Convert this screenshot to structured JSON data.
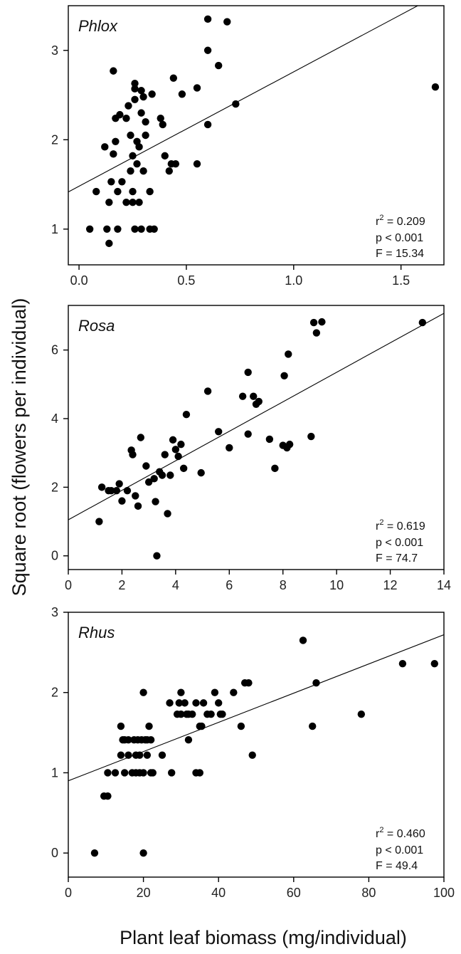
{
  "figure": {
    "ylabel": "Square root (flowers per individual)",
    "xlabel": "Plant leaf biomass (mg/individual)"
  },
  "chart_data": [
    {
      "type": "scatter",
      "title": "Phlox",
      "xlim": [
        -0.05,
        1.7
      ],
      "ylim": [
        0.6,
        3.5
      ],
      "xticks": [
        0.0,
        0.5,
        1.0,
        1.5
      ],
      "xtick_labels": [
        "0.0",
        "0.5",
        "1.0",
        "1.5"
      ],
      "yticks": [
        1,
        2,
        3
      ],
      "ytick_labels": [
        "1",
        "2",
        "3"
      ],
      "fit": {
        "intercept": 1.48,
        "slope": 1.28
      },
      "stats": {
        "r2": "0.209",
        "p": "p < 0.001",
        "F": "F = 15.34"
      },
      "x": [
        0.05,
        0.08,
        0.12,
        0.13,
        0.14,
        0.14,
        0.15,
        0.16,
        0.16,
        0.17,
        0.17,
        0.18,
        0.18,
        0.19,
        0.2,
        0.22,
        0.22,
        0.23,
        0.24,
        0.24,
        0.25,
        0.25,
        0.25,
        0.26,
        0.26,
        0.26,
        0.26,
        0.27,
        0.27,
        0.28,
        0.28,
        0.29,
        0.29,
        0.29,
        0.3,
        0.3,
        0.31,
        0.31,
        0.33,
        0.33,
        0.34,
        0.35,
        0.38,
        0.39,
        0.4,
        0.42,
        0.43,
        0.44,
        0.45,
        0.48,
        0.55,
        0.55,
        0.6,
        0.6,
        0.6,
        0.65,
        0.69,
        0.73,
        1.66
      ],
      "y": [
        1.0,
        1.42,
        1.92,
        1.0,
        0.84,
        1.3,
        1.53,
        1.84,
        2.77,
        2.24,
        1.98,
        1.42,
        1.0,
        2.28,
        1.53,
        2.24,
        1.3,
        2.38,
        1.65,
        2.05,
        1.82,
        1.42,
        1.3,
        2.63,
        2.57,
        2.45,
        1.0,
        1.98,
        1.73,
        1.3,
        1.92,
        2.55,
        2.3,
        1.0,
        2.48,
        1.65,
        2.05,
        2.2,
        1.42,
        1.0,
        2.51,
        1.0,
        2.24,
        2.17,
        1.82,
        1.65,
        1.73,
        2.69,
        1.73,
        2.51,
        2.58,
        1.73,
        3.35,
        3.0,
        2.17,
        2.83,
        3.32,
        2.4,
        2.59
      ]
    },
    {
      "type": "scatter",
      "title": "Rosa",
      "xlim": [
        0,
        14
      ],
      "ylim": [
        -0.4,
        7.3
      ],
      "xticks": [
        0,
        2,
        4,
        6,
        8,
        10,
        12,
        14
      ],
      "xtick_labels": [
        "0",
        "2",
        "4",
        "6",
        "8",
        "10",
        "12",
        "14"
      ],
      "yticks": [
        0,
        2,
        4,
        6
      ],
      "ytick_labels": [
        "0",
        "2",
        "4",
        "6"
      ],
      "fit": {
        "intercept": 1.05,
        "slope": 0.43
      },
      "stats": {
        "r2": "0.619",
        "p": "p < 0.001",
        "F": "F = 74.7"
      },
      "x": [
        1.15,
        1.25,
        1.5,
        1.6,
        1.8,
        1.9,
        2.0,
        2.2,
        2.35,
        2.4,
        2.5,
        2.6,
        2.7,
        2.9,
        3.0,
        3.2,
        3.25,
        3.3,
        3.4,
        3.5,
        3.6,
        3.7,
        3.8,
        3.9,
        4.0,
        4.1,
        4.2,
        4.3,
        4.4,
        4.95,
        5.2,
        5.6,
        6.0,
        6.5,
        6.7,
        6.7,
        6.9,
        7.0,
        7.1,
        7.5,
        7.7,
        8.0,
        8.05,
        8.15,
        8.2,
        8.25,
        9.05,
        9.15,
        9.25,
        9.45,
        13.2
      ],
      "y": [
        1.0,
        2.0,
        1.9,
        1.9,
        1.9,
        2.1,
        1.6,
        1.9,
        3.08,
        2.95,
        1.75,
        1.45,
        3.45,
        2.62,
        2.15,
        2.25,
        1.58,
        0.0,
        2.45,
        2.35,
        2.95,
        1.23,
        2.35,
        3.38,
        3.1,
        2.9,
        3.25,
        2.55,
        4.12,
        2.42,
        4.8,
        3.62,
        3.15,
        4.65,
        5.35,
        3.55,
        4.65,
        4.42,
        4.5,
        3.4,
        2.55,
        3.22,
        5.25,
        3.15,
        5.88,
        3.25,
        3.48,
        6.8,
        6.5,
        6.82,
        6.8
      ]
    },
    {
      "type": "scatter",
      "title": "Rhus",
      "xlim": [
        0,
        100
      ],
      "ylim": [
        -0.3,
        3.0
      ],
      "xticks": [
        0,
        20,
        40,
        60,
        80,
        100
      ],
      "xtick_labels": [
        "0",
        "20",
        "40",
        "60",
        "80",
        "100"
      ],
      "yticks": [
        0,
        1,
        2,
        3
      ],
      "ytick_labels": [
        "0",
        "1",
        "2",
        "3"
      ],
      "fit": {
        "intercept": 0.9,
        "slope": 0.0182
      },
      "stats": {
        "r2": "0.460",
        "p": "p < 0.001",
        "F": "F = 49.4"
      },
      "x": [
        7,
        9.5,
        10.5,
        10.5,
        12.5,
        14,
        14,
        14.5,
        15,
        15,
        16,
        16,
        17,
        17.5,
        18,
        18,
        18.5,
        19,
        19,
        19.5,
        20,
        20,
        20,
        20.5,
        21,
        21,
        21.5,
        22,
        22,
        22.5,
        25,
        27,
        27.5,
        29,
        29.5,
        30,
        30,
        31,
        31.5,
        32,
        32,
        33,
        34,
        34,
        35,
        35,
        35.5,
        36,
        37,
        38,
        39,
        40,
        40.5,
        41,
        44,
        46,
        47,
        48,
        49,
        62.5,
        65,
        66,
        78,
        89,
        97.5
      ],
      "y": [
        0.0,
        0.71,
        0.71,
        1.0,
        1.0,
        1.22,
        1.58,
        1.41,
        1.0,
        1.41,
        1.22,
        1.41,
        1.0,
        1.41,
        1.22,
        1.0,
        1.41,
        1.22,
        1.0,
        1.41,
        2.0,
        1.0,
        0.0,
        1.41,
        1.22,
        1.41,
        1.58,
        1.0,
        1.41,
        1.0,
        1.22,
        1.87,
        1.0,
        1.73,
        1.87,
        1.73,
        2.0,
        1.87,
        1.73,
        1.41,
        1.73,
        1.73,
        1.0,
        1.87,
        1.0,
        1.58,
        1.58,
        1.87,
        1.73,
        1.73,
        2.0,
        1.87,
        1.73,
        1.73,
        2.0,
        1.58,
        2.12,
        2.12,
        1.22,
        2.65,
        1.58,
        2.12,
        1.73,
        2.36,
        2.36
      ]
    }
  ]
}
